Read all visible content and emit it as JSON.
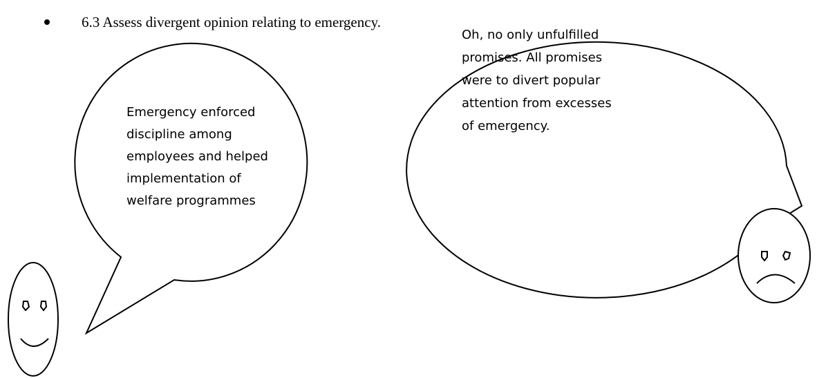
{
  "bullet": {
    "text": "6.3 Assess divergent opinion relating to emergency."
  },
  "bubbles": [
    {
      "lines": [
        "Emergency enforced",
        "discipline among",
        "employees and helped",
        "implementation of",
        "welfare programmes"
      ]
    },
    {
      "lines": [
        "Oh, no only unfulfilled",
        "promises. All promises",
        "were to divert popular",
        "attention from excesses",
        "of emergency."
      ]
    }
  ]
}
